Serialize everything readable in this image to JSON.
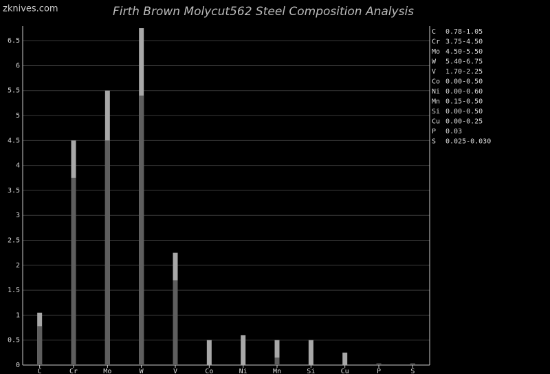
{
  "watermark": "zknives.com",
  "chart_data": {
    "type": "range-bar",
    "title": "Firth Brown Molycut562 Steel Composition Analysis",
    "categories": [
      "C",
      "Cr",
      "Mo",
      "W",
      "V",
      "Co",
      "Ni",
      "Mn",
      "Si",
      "Cu",
      "P",
      "S"
    ],
    "series": [
      {
        "color": "#a8a8a8",
        "values": [
          1.05,
          4.5,
          5.5,
          6.75,
          2.25,
          0.5,
          0.6,
          0.5,
          0.5,
          0.25,
          0.03,
          0.03
        ]
      },
      {
        "color": "#5e5e5e",
        "values": [
          0.78,
          3.75,
          4.5,
          5.4,
          1.7,
          0,
          0,
          0.15,
          0,
          0,
          0.03,
          0.025
        ]
      }
    ],
    "legend_ranges": [
      "0.78-1.05",
      "3.75-4.50",
      "4.50-5.50",
      "5.40-6.75",
      "1.70-2.25",
      "0.00-0.50",
      "0.00-0.60",
      "0.15-0.50",
      "0.00-0.50",
      "0.00-0.25",
      "0.03",
      "0.025-0.030"
    ],
    "ylim": [
      0,
      6.75
    ],
    "yticks": [
      0,
      0.5,
      1,
      1.5,
      2,
      2.5,
      3,
      3.5,
      4,
      4.5,
      5,
      5.5,
      6,
      6.5
    ],
    "grid": true
  }
}
